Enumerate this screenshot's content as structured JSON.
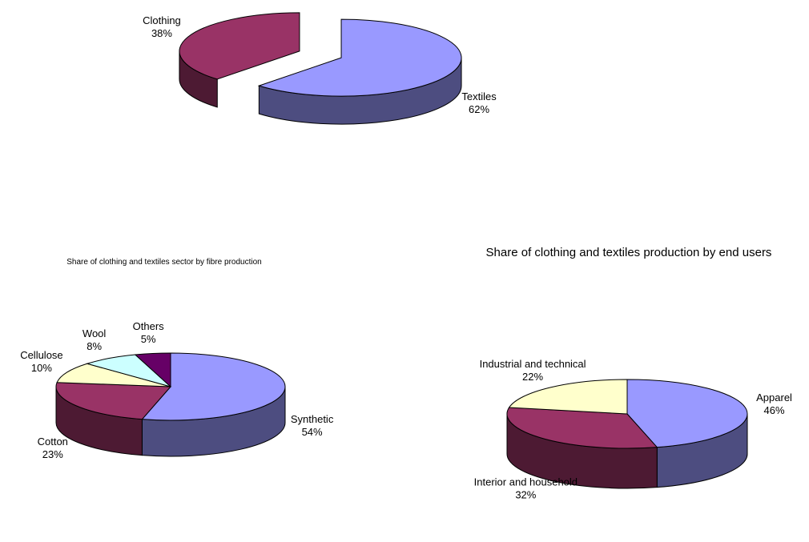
{
  "chart_data": [
    {
      "type": "pie3d",
      "exploded": true,
      "categories": [
        "Textiles",
        "Clothing"
      ],
      "values": [
        62,
        38
      ],
      "value_labels": [
        "62%",
        "38%"
      ],
      "colors": [
        "#9999ff",
        "#993366"
      ]
    },
    {
      "type": "pie3d",
      "title": "Share of clothing and textiles sector by fibre production",
      "categories": [
        "Synthetic",
        "Cotton",
        "Cellulose",
        "Wool",
        "Others"
      ],
      "values": [
        54,
        23,
        10,
        8,
        5
      ],
      "value_labels": [
        "54%",
        "23%",
        "10%",
        "8%",
        "5%"
      ],
      "colors": [
        "#9999ff",
        "#993366",
        "#ffffcc",
        "#ccffff",
        "#660066"
      ]
    },
    {
      "type": "pie3d",
      "title": "Share of clothing and textiles production by end users",
      "categories": [
        "Apparel",
        "Interior and household",
        "Industrial and technical"
      ],
      "values": [
        46,
        32,
        22
      ],
      "value_labels": [
        "46%",
        "32%",
        "22%"
      ],
      "colors": [
        "#9999ff",
        "#993366",
        "#ffffcc"
      ]
    }
  ]
}
